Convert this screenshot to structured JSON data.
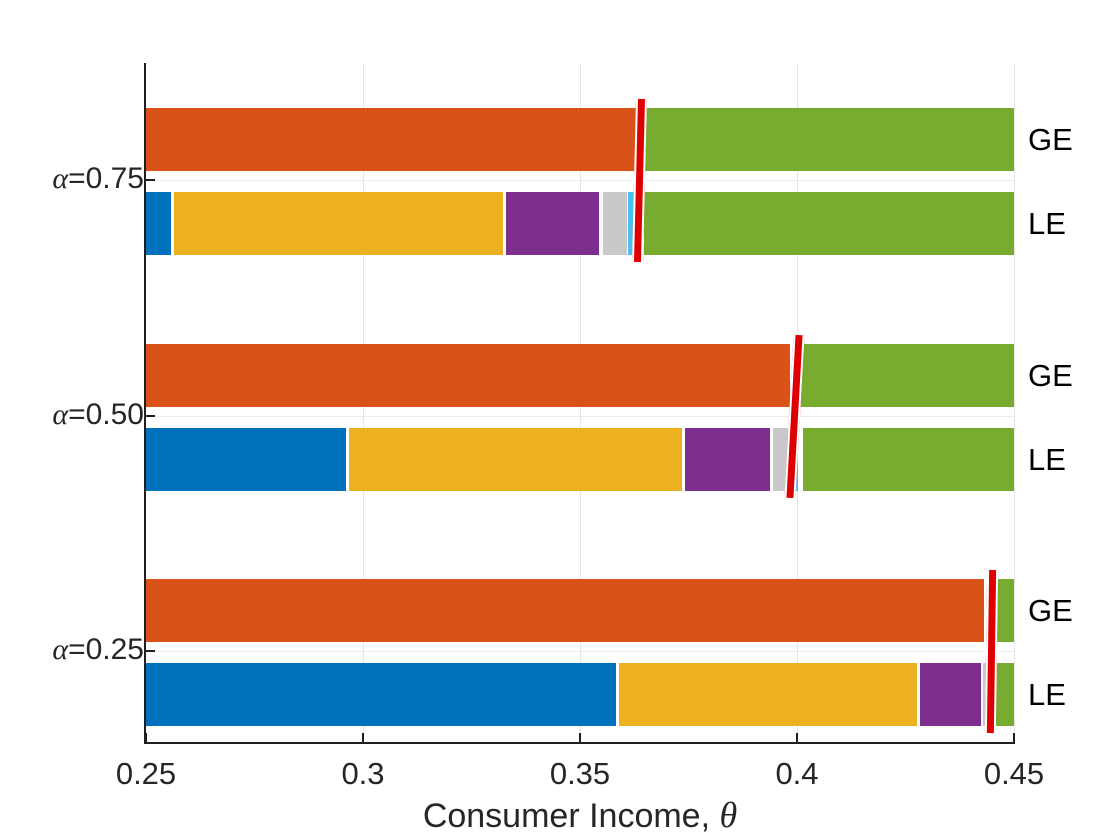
{
  "chart_data": {
    "type": "bar",
    "orientation": "horizontal_stacked",
    "title": "",
    "xlabel_text": "Consumer Income, ",
    "xlabel_symbol": "θ",
    "xlim": [
      0.25,
      0.45
    ],
    "xticks": [
      0.25,
      0.3,
      0.35,
      0.4,
      0.45
    ],
    "xtick_labels": [
      "0.25",
      "0.3",
      "0.35",
      "0.4",
      "0.45"
    ],
    "grid": true,
    "legend": null,
    "colors": {
      "blue": "#0072BD",
      "orange": "#D95319",
      "yellow": "#EDB120",
      "purple": "#7E2F8E",
      "green": "#77AC30",
      "lightblue": "#4DBEEE",
      "gray": "#C9C9C9",
      "red_marker": "#DE0000",
      "axis": "#1f1f1f",
      "grid_color": "#e6e6e6"
    },
    "groups": [
      {
        "label_symbol": "α",
        "label_value": "=0.75",
        "red_marker_x": 0.3638,
        "bars": [
          {
            "name": "GE",
            "segments": [
              {
                "color": "orange",
                "from": 0.25,
                "to": 0.3629
              },
              {
                "color": "green",
                "from": 0.3648,
                "to": 0.45
              }
            ]
          },
          {
            "name": "LE",
            "segments": [
              {
                "color": "blue",
                "from": 0.25,
                "to": 0.2558
              },
              {
                "color": "yellow",
                "from": 0.2565,
                "to": 0.3322
              },
              {
                "color": "purple",
                "from": 0.3329,
                "to": 0.3543
              },
              {
                "color": "gray",
                "from": 0.3553,
                "to": 0.3608
              },
              {
                "color": "lightblue",
                "from": 0.3611,
                "to": 0.3629
              },
              {
                "color": "green",
                "from": 0.3648,
                "to": 0.45
              }
            ]
          }
        ]
      },
      {
        "label_symbol": "α",
        "label_value": "=0.50",
        "red_marker_x": 0.3995,
        "bars": [
          {
            "name": "GE",
            "segments": [
              {
                "color": "orange",
                "from": 0.25,
                "to": 0.3984
              },
              {
                "color": "green",
                "from": 0.4007,
                "to": 0.45
              }
            ]
          },
          {
            "name": "LE",
            "segments": [
              {
                "color": "blue",
                "from": 0.25,
                "to": 0.2961
              },
              {
                "color": "yellow",
                "from": 0.2967,
                "to": 0.3735
              },
              {
                "color": "purple",
                "from": 0.3743,
                "to": 0.3938
              },
              {
                "color": "gray",
                "from": 0.3944,
                "to": 0.3979
              },
              {
                "color": "lightblue",
                "from": 0.3982,
                "to": 0.4002
              },
              {
                "color": "green",
                "from": 0.4013,
                "to": 0.45
              }
            ]
          }
        ]
      },
      {
        "label_symbol": "α",
        "label_value": "=0.25",
        "red_marker_x": 0.4448,
        "bars": [
          {
            "name": "GE",
            "segments": [
              {
                "color": "orange",
                "from": 0.25,
                "to": 0.4431
              },
              {
                "color": "green",
                "from": 0.4458,
                "to": 0.45
              }
            ]
          },
          {
            "name": "LE",
            "segments": [
              {
                "color": "blue",
                "from": 0.25,
                "to": 0.3583
              },
              {
                "color": "yellow",
                "from": 0.3589,
                "to": 0.4276
              },
              {
                "color": "purple",
                "from": 0.4283,
                "to": 0.4424
              },
              {
                "color": "gray",
                "from": 0.4429,
                "to": 0.4441
              },
              {
                "color": "lightblue",
                "from": 0.4443,
                "to": 0.4452
              },
              {
                "color": "green",
                "from": 0.4458,
                "to": 0.45
              }
            ]
          }
        ]
      }
    ]
  }
}
